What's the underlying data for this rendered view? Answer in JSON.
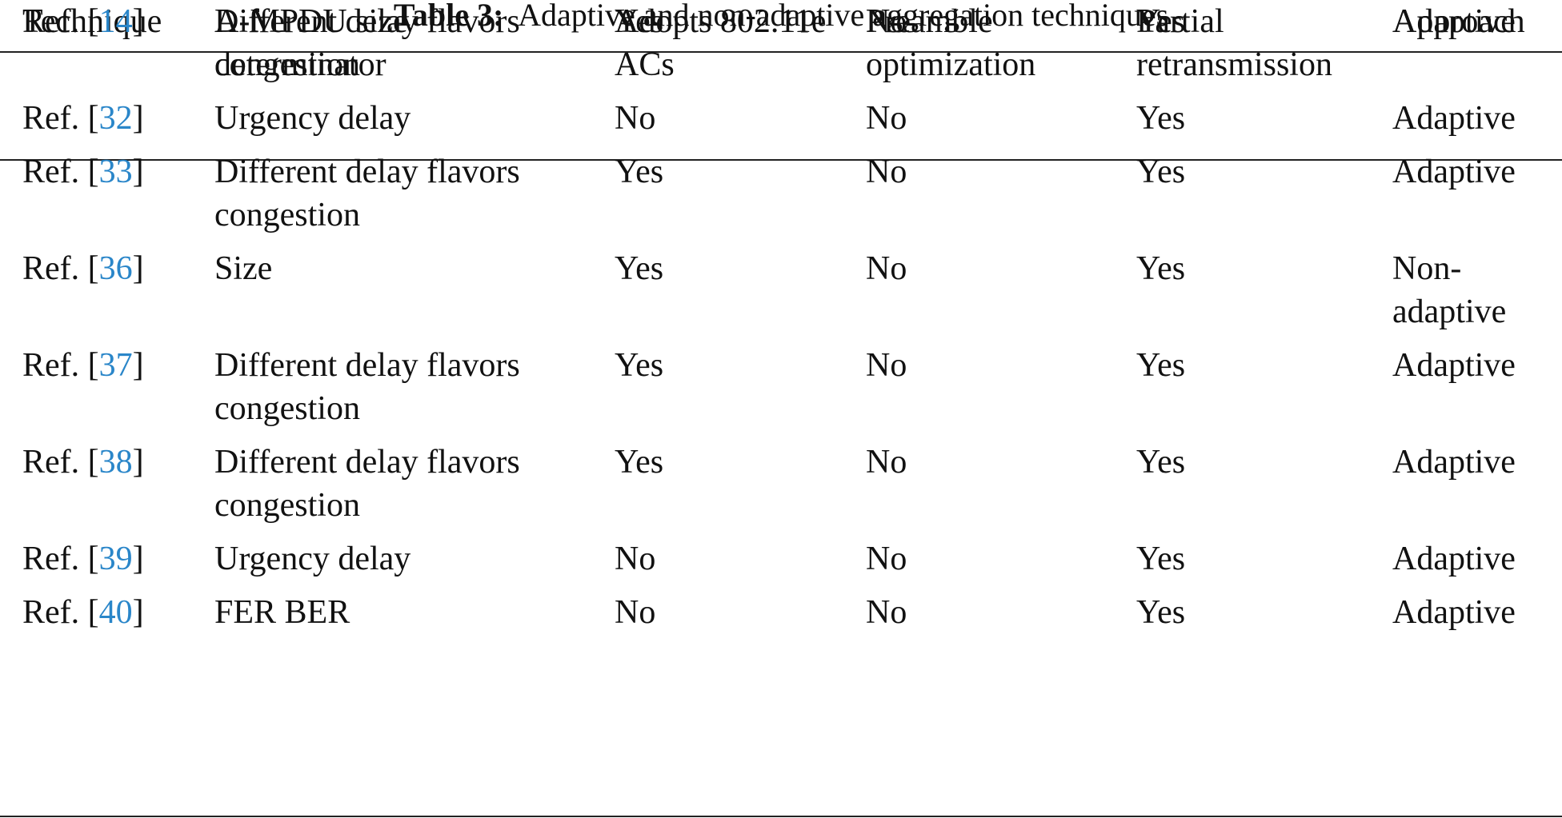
{
  "caption": {
    "label": "Table 3:",
    "text": "Adaptive and non-adaptive aggregation techniques"
  },
  "columns": [
    [
      "Technique"
    ],
    [
      "A-MPDU size",
      "determinator"
    ],
    [
      "Adopts 802.11e",
      "ACs"
    ],
    [
      "Preamble",
      "optimization"
    ],
    [
      "Partial",
      "retransmission"
    ],
    [
      "Approach"
    ]
  ],
  "ref_prefix": "Ref. [",
  "ref_suffix": "]",
  "colors": {
    "reference_link": "#2a86c9"
  },
  "rows": [
    {
      "ref": "14",
      "determinator": [
        "Different delay flavors",
        "congestion"
      ],
      "acs": "Yes",
      "preamble": "No",
      "partial": "Yes",
      "approach": [
        "Adaptive"
      ]
    },
    {
      "ref": "32",
      "determinator": [
        "Urgency delay"
      ],
      "acs": "No",
      "preamble": "No",
      "partial": "Yes",
      "approach": [
        "Adaptive"
      ]
    },
    {
      "ref": "33",
      "determinator": [
        "Different delay flavors",
        "congestion"
      ],
      "acs": "Yes",
      "preamble": "No",
      "partial": "Yes",
      "approach": [
        "Adaptive"
      ]
    },
    {
      "ref": "36",
      "determinator": [
        "Size"
      ],
      "acs": "Yes",
      "preamble": "No",
      "partial": "Yes",
      "approach": [
        "Non-",
        "adaptive"
      ]
    },
    {
      "ref": "37",
      "determinator": [
        "Different delay flavors",
        "congestion"
      ],
      "acs": "Yes",
      "preamble": "No",
      "partial": "Yes",
      "approach": [
        "Adaptive"
      ]
    },
    {
      "ref": "38",
      "determinator": [
        "Different delay flavors",
        "congestion"
      ],
      "acs": "Yes",
      "preamble": "No",
      "partial": "Yes",
      "approach": [
        "Adaptive"
      ]
    },
    {
      "ref": "39",
      "determinator": [
        "Urgency delay"
      ],
      "acs": "No",
      "preamble": "No",
      "partial": "Yes",
      "approach": [
        "Adaptive"
      ]
    },
    {
      "ref": "40",
      "determinator": [
        "FER BER"
      ],
      "acs": "No",
      "preamble": "No",
      "partial": "Yes",
      "approach": [
        "Adaptive"
      ]
    }
  ]
}
